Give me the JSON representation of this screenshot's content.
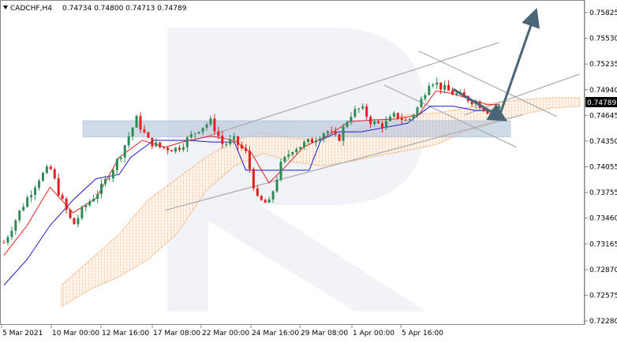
{
  "header": {
    "symbol": "CADCHF,H4",
    "ohlc": "0.74734 0.74800 0.74713 0.74789",
    "menu_icon": "triangle-down-icon"
  },
  "current_price_label": "0.74789",
  "colors": {
    "bull_candle": "#2e8b57",
    "bear_candle": "#e02020",
    "tenkan": "#e02020",
    "kijun": "#1a1acc",
    "cloud": "#f4a460",
    "channel": "#a9a9a9",
    "arrow": "#4a6478",
    "support_zone": "#b8c8dc",
    "price_badge": "#000000"
  },
  "chart_data": {
    "type": "candlestick",
    "title": "CADCHF,H4",
    "y_ticks": [
      "0.75825",
      "0.75530",
      "0.75235",
      "0.74940",
      "0.74645",
      "0.74350",
      "0.74055",
      "0.73755",
      "0.73460",
      "0.73165",
      "0.72870",
      "0.72575",
      "0.72280"
    ],
    "x_ticks": [
      "5 Mar 2021",
      "10 Mar 00:00",
      "12 Mar 16:00",
      "17 Mar 08:00",
      "22 Mar 00:00",
      "24 Mar 16:00",
      "29 Mar 08:00",
      "1 Apr 00:00",
      "5 Apr 16:00"
    ],
    "ylim": [
      0.7228,
      0.759
    ],
    "x_categories": [
      "5 Mar 2021",
      "10 Mar 00:00",
      "12 Mar 16:00",
      "17 Mar 08:00",
      "22 Mar 00:00",
      "24 Mar 16:00",
      "29 Mar 08:00",
      "1 Apr 00:00",
      "5 Apr 16:00"
    ],
    "price_path": [
      [
        0,
        0.732
      ],
      [
        3,
        0.736
      ],
      [
        6,
        0.7395
      ],
      [
        8,
        0.7408
      ],
      [
        10,
        0.737
      ],
      [
        12,
        0.734
      ],
      [
        14,
        0.7362
      ],
      [
        17,
        0.7385
      ],
      [
        20,
        0.742
      ],
      [
        22,
        0.745
      ],
      [
        23,
        0.7465
      ],
      [
        25,
        0.744
      ],
      [
        27,
        0.7432
      ],
      [
        30,
        0.743
      ],
      [
        32,
        0.7442
      ],
      [
        34,
        0.7455
      ],
      [
        36,
        0.7462
      ],
      [
        38,
        0.7435
      ],
      [
        40,
        0.744
      ],
      [
        42,
        0.7425
      ],
      [
        44,
        0.737
      ],
      [
        46,
        0.7365
      ],
      [
        48,
        0.741
      ],
      [
        50,
        0.743
      ],
      [
        53,
        0.7438
      ],
      [
        56,
        0.7452
      ],
      [
        58,
        0.744
      ],
      [
        60,
        0.747
      ],
      [
        62,
        0.7478
      ],
      [
        64,
        0.746
      ],
      [
        66,
        0.7458
      ],
      [
        68,
        0.747
      ],
      [
        70,
        0.7462
      ],
      [
        72,
        0.748
      ],
      [
        74,
        0.7512
      ],
      [
        76,
        0.7502
      ],
      [
        78,
        0.7495
      ],
      [
        80,
        0.749
      ],
      [
        82,
        0.7485
      ],
      [
        84,
        0.7475
      ],
      [
        86,
        0.7479
      ]
    ],
    "tenkan_path": [
      [
        0,
        0.7305
      ],
      [
        4,
        0.734
      ],
      [
        8,
        0.7385
      ],
      [
        12,
        0.7355
      ],
      [
        16,
        0.7372
      ],
      [
        20,
        0.742
      ],
      [
        24,
        0.744
      ],
      [
        28,
        0.7432
      ],
      [
        32,
        0.744
      ],
      [
        36,
        0.7445
      ],
      [
        40,
        0.744
      ],
      [
        43,
        0.7425
      ],
      [
        46,
        0.739
      ],
      [
        49,
        0.741
      ],
      [
        52,
        0.7432
      ],
      [
        56,
        0.7445
      ],
      [
        60,
        0.7462
      ],
      [
        64,
        0.7464
      ],
      [
        68,
        0.7465
      ],
      [
        72,
        0.747
      ],
      [
        75,
        0.7498
      ],
      [
        78,
        0.7495
      ],
      [
        81,
        0.7488
      ],
      [
        84,
        0.7482
      ],
      [
        86,
        0.7482
      ]
    ],
    "kijun_path": [
      [
        0,
        0.727
      ],
      [
        4,
        0.73
      ],
      [
        8,
        0.734
      ],
      [
        12,
        0.737
      ],
      [
        16,
        0.7395
      ],
      [
        20,
        0.74
      ],
      [
        22,
        0.742
      ],
      [
        26,
        0.744
      ],
      [
        32,
        0.744
      ],
      [
        36,
        0.7438
      ],
      [
        40,
        0.7438
      ],
      [
        42,
        0.7405
      ],
      [
        46,
        0.7405
      ],
      [
        50,
        0.7405
      ],
      [
        53,
        0.7405
      ],
      [
        55,
        0.744
      ],
      [
        58,
        0.745
      ],
      [
        62,
        0.745
      ],
      [
        66,
        0.7455
      ],
      [
        70,
        0.746
      ],
      [
        74,
        0.748
      ],
      [
        78,
        0.748
      ],
      [
        82,
        0.7475
      ],
      [
        86,
        0.7475
      ]
    ],
    "cloud_upper_path": [
      [
        10,
        0.727
      ],
      [
        15,
        0.73
      ],
      [
        20,
        0.733
      ],
      [
        25,
        0.737
      ],
      [
        30,
        0.7395
      ],
      [
        35,
        0.742
      ],
      [
        40,
        0.744
      ],
      [
        45,
        0.745
      ],
      [
        50,
        0.7442
      ],
      [
        55,
        0.7442
      ],
      [
        60,
        0.745
      ],
      [
        65,
        0.7462
      ],
      [
        70,
        0.747
      ],
      [
        75,
        0.7472
      ],
      [
        80,
        0.7478
      ],
      [
        85,
        0.7484
      ],
      [
        90,
        0.7488
      ],
      [
        95,
        0.749
      ],
      [
        100,
        0.749
      ]
    ],
    "cloud_lower_path": [
      [
        10,
        0.7245
      ],
      [
        15,
        0.7265
      ],
      [
        20,
        0.728
      ],
      [
        25,
        0.73
      ],
      [
        30,
        0.733
      ],
      [
        35,
        0.738
      ],
      [
        40,
        0.741
      ],
      [
        45,
        0.7425
      ],
      [
        50,
        0.7415
      ],
      [
        55,
        0.741
      ],
      [
        60,
        0.7415
      ],
      [
        65,
        0.7422
      ],
      [
        70,
        0.7428
      ],
      [
        75,
        0.7435
      ],
      [
        80,
        0.745
      ],
      [
        85,
        0.746
      ],
      [
        90,
        0.747
      ],
      [
        95,
        0.7478
      ],
      [
        100,
        0.748
      ]
    ],
    "support_zone": {
      "from": 0.7444,
      "to": 0.7463
    },
    "channel_lines": [
      {
        "from": [
          28,
          0.7358
        ],
        "to": [
          90,
          0.747
        ]
      },
      {
        "from": [
          33,
          0.744
        ],
        "to": [
          86,
          0.7555
        ]
      },
      {
        "from": [
          80,
          0.747
        ],
        "to": [
          100,
          0.7518
        ]
      },
      {
        "from": [
          66,
          0.7505
        ],
        "to": [
          89,
          0.7432
        ]
      },
      {
        "from": [
          72,
          0.7545
        ],
        "to": [
          96,
          0.7468
        ]
      }
    ],
    "forecast_arrows": [
      {
        "from": [
          78,
          0.75
        ],
        "to": [
          86,
          0.7468
        ]
      },
      {
        "from": [
          86,
          0.7468
        ],
        "to": [
          92,
          0.7585
        ]
      }
    ],
    "grid": false,
    "watermark": "R"
  }
}
